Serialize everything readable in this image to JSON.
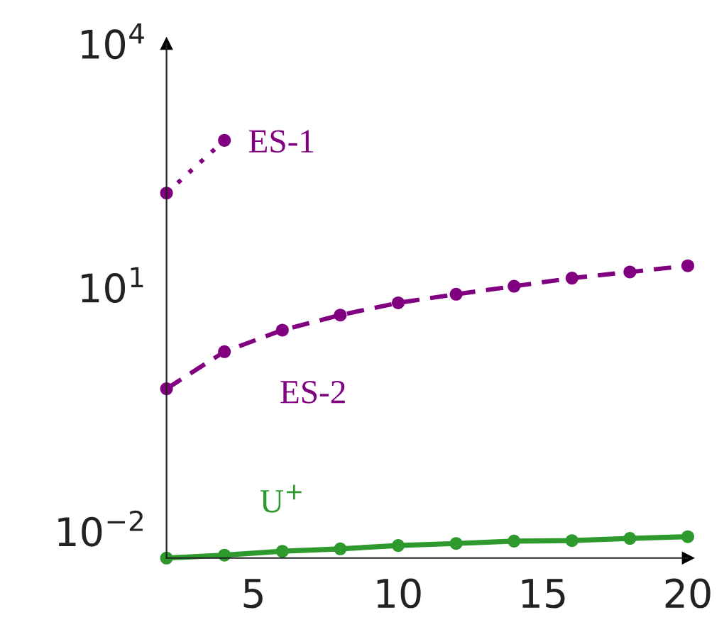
{
  "chart_data": {
    "type": "line",
    "log": "y",
    "grid": false,
    "legend": false,
    "marker": "circle",
    "xlim": [
      2,
      20
    ],
    "ylim": [
      0.0047,
      10000
    ],
    "xticks": [
      5,
      10,
      15,
      20
    ],
    "yticks": [
      {
        "value": 0.01,
        "label": "10$^{−2}$"
      },
      {
        "value": 10,
        "label": "10$^{1}$"
      },
      {
        "value": 10000,
        "label": "10$^{4}$"
      }
    ],
    "series": [
      {
        "name": "ES-1",
        "color": "#800080",
        "line_style": "dotted",
        "x": [
          2,
          4
        ],
        "values": [
          146,
          650
        ]
      },
      {
        "name": "ES-2",
        "color": "#800080",
        "line_style": "dashed",
        "x": [
          2,
          4,
          6,
          8,
          10,
          12,
          14,
          16,
          18,
          20
        ],
        "values": [
          0.57,
          1.63,
          3.0,
          4.6,
          6.5,
          8.3,
          10.4,
          13.1,
          15.6,
          18.6
        ]
      },
      {
        "name": "U$^{+}$",
        "color": "#2e9a2e",
        "line_style": "solid",
        "x": [
          2,
          4,
          6,
          8,
          10,
          12,
          14,
          16,
          18,
          20
        ],
        "values": [
          0.0047,
          0.0051,
          0.0057,
          0.0061,
          0.0067,
          0.0071,
          0.0076,
          0.0077,
          0.0082,
          0.0086
        ]
      }
    ]
  }
}
